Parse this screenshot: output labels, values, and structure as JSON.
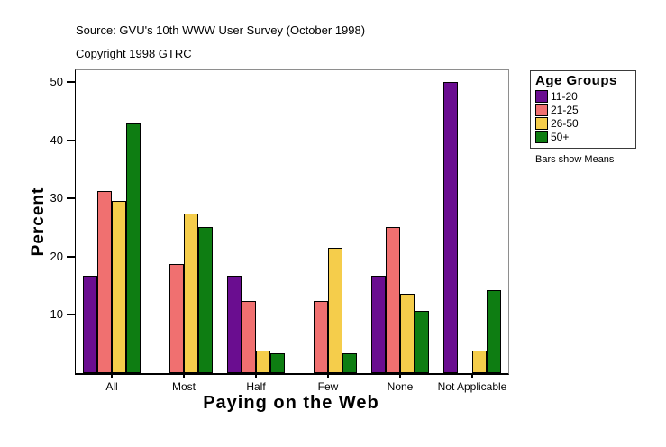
{
  "header": {
    "source_line": "Source: GVU's 10th WWW User Survey (October 1998)",
    "copyright_line": "Copyright 1998 GTRC"
  },
  "chart_data": {
    "type": "bar",
    "title": "",
    "xlabel": "Paying on the Web",
    "ylabel": "Percent",
    "categories": [
      "All",
      "Most",
      "Half",
      "Few",
      "None",
      "Not Applicable"
    ],
    "series": [
      {
        "name": "11-20",
        "color": "#6A0D90",
        "values": [
          16.7,
          null,
          16.7,
          null,
          16.7,
          50.0
        ]
      },
      {
        "name": "21-25",
        "color": "#F07070",
        "values": [
          31.3,
          18.7,
          12.4,
          12.4,
          25.0,
          null
        ]
      },
      {
        "name": "26-50",
        "color": "#F5CD4B",
        "values": [
          29.5,
          27.4,
          3.8,
          21.5,
          13.6,
          3.8
        ]
      },
      {
        "name": "50+",
        "color": "#0E7D12",
        "values": [
          42.9,
          25.0,
          3.4,
          3.4,
          10.7,
          14.3
        ]
      }
    ],
    "y_ticks": [
      10,
      20,
      30,
      40,
      50
    ],
    "ylim": [
      0,
      52
    ],
    "grid": false,
    "legend": {
      "title": "Age Groups",
      "position": "right"
    },
    "note": "Bars show Means"
  }
}
